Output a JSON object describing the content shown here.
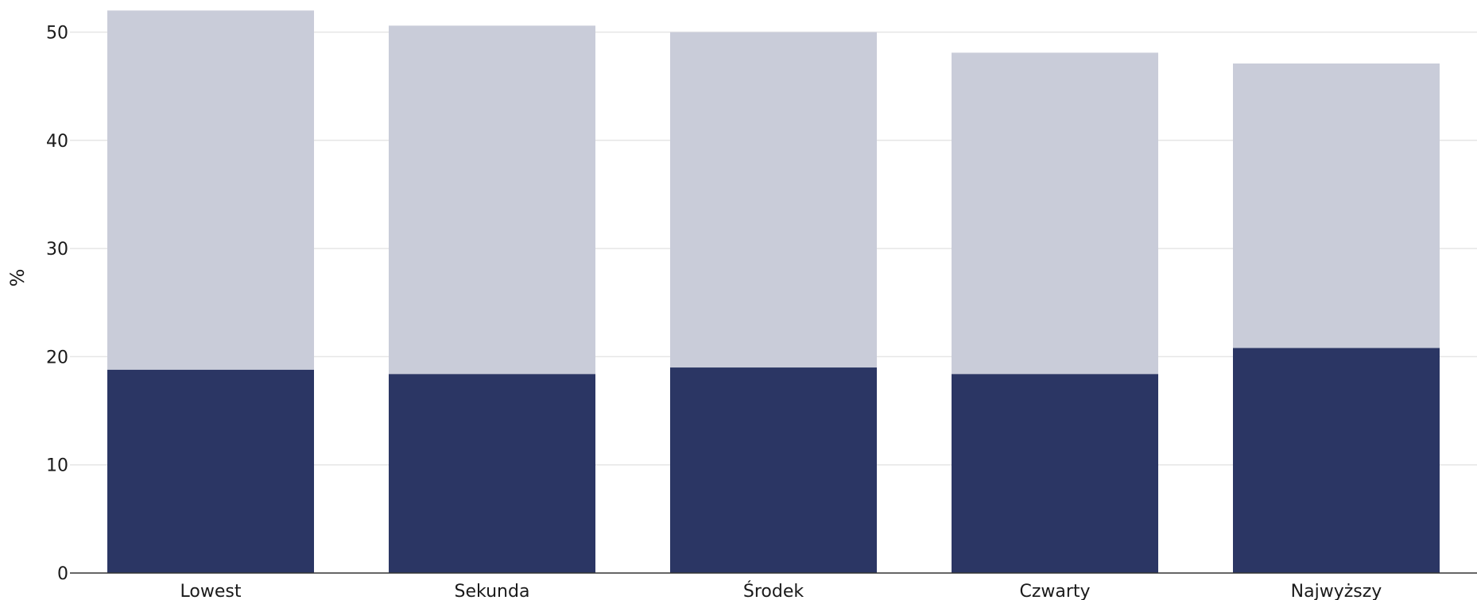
{
  "chart_data": {
    "type": "bar",
    "stacked": true,
    "title": "",
    "xlabel": "",
    "ylabel": "%",
    "categories": [
      "Lowest",
      "Sekunda",
      "Środek",
      "Czwarty",
      "Najwyższy"
    ],
    "series": [
      {
        "values": [
          18.8,
          18.4,
          19.0,
          18.4,
          20.8
        ],
        "color": "#2b3664"
      },
      {
        "values": [
          33.2,
          32.2,
          31.0,
          29.7,
          26.3
        ],
        "color": "#c9ccd9"
      }
    ],
    "ylim": [
      0,
      52
    ],
    "yticks": [
      "0",
      "10",
      "20",
      "30",
      "40",
      "50"
    ],
    "grid": true,
    "legend": "none"
  }
}
